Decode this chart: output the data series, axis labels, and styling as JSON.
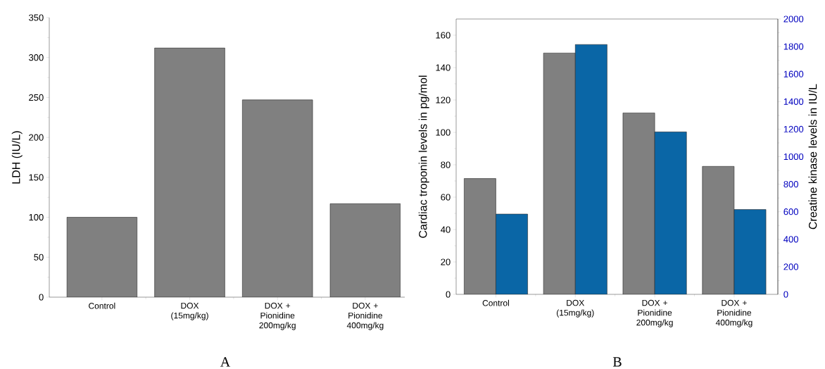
{
  "chart_data": [
    {
      "type": "bar",
      "title": "A",
      "categories": [
        "Control",
        "DOX (15mg/kg)",
        "DOX + Pionidine 200mg/kg",
        "DOX + Pionidine 400mg/kg"
      ],
      "values": [
        100,
        312,
        247,
        117
      ],
      "color": "#808080",
      "ylabel": "LDH (IU/L)",
      "ylim": [
        0,
        350
      ],
      "yticks": [
        0,
        50,
        100,
        150,
        200,
        250,
        300,
        350
      ]
    },
    {
      "type": "bar",
      "title": "B",
      "categories": [
        "Control",
        "DOX (15mg/kg)",
        "DOX + Pionidine 200mg/kg",
        "DOX + Pionidine 400mg/kg"
      ],
      "series": [
        {
          "color": "#808080",
          "values": [
            71.5,
            149,
            112,
            79
          ]
        },
        {
          "color": "#0a66a6",
          "values": [
            583,
            1815,
            1180,
            616
          ],
          "axis": "y2"
        }
      ],
      "ylabel": "Cardiac troponin levels in pg/mol",
      "y2label": "Creatine kinase levels in IU/L",
      "ylim": [
        0,
        170
      ],
      "yticks": [
        0,
        20,
        40,
        60,
        80,
        100,
        120,
        140,
        160
      ],
      "y2lim": [
        0,
        2000
      ],
      "y2ticks": [
        0,
        200,
        400,
        600,
        800,
        1000,
        1200,
        1400,
        1600,
        1800,
        2000
      ]
    }
  ]
}
